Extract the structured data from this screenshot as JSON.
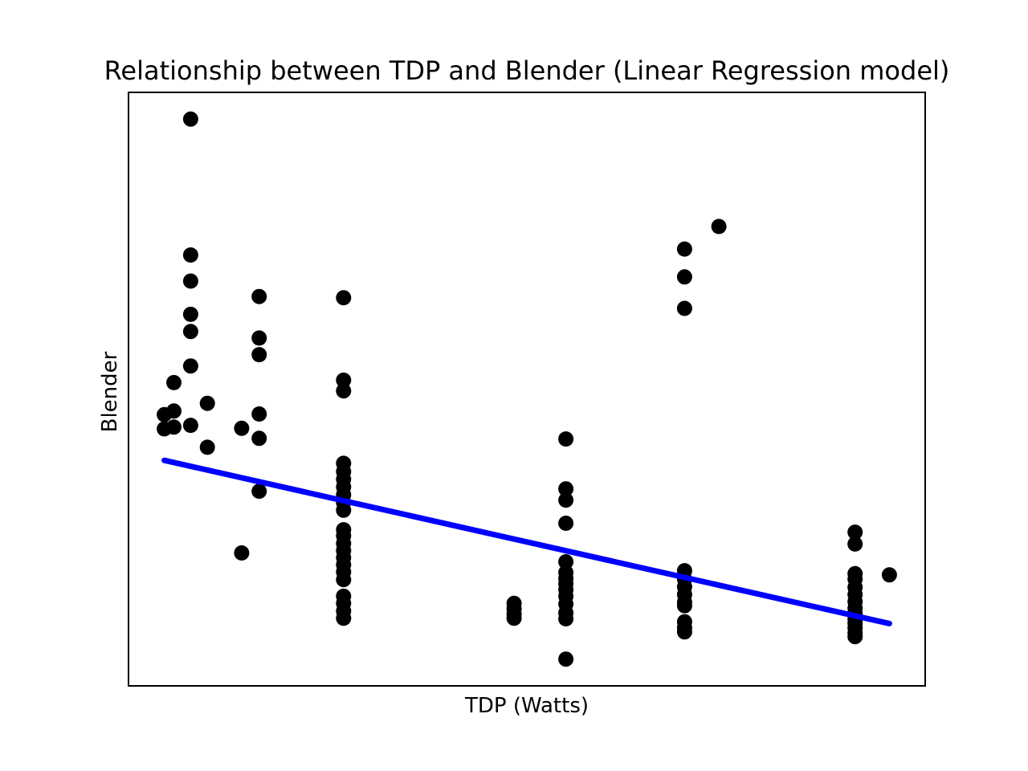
{
  "chart_data": {
    "type": "scatter",
    "title": "Relationship between TDP and Blender (Linear Regression model)",
    "xlabel": "TDP (Watts)",
    "ylabel": "Blender",
    "xlim": [
      0,
      100
    ],
    "ylim": [
      0,
      100
    ],
    "x_ticks_shown": false,
    "y_ticks_shown": false,
    "grid": false,
    "colors": {
      "points": "#000000",
      "regression_line": "#0000ff",
      "frame": "#000000",
      "background": "#ffffff"
    },
    "points": [
      {
        "x": 4.5,
        "y": 45.7
      },
      {
        "x": 4.5,
        "y": 43.3
      },
      {
        "x": 5.7,
        "y": 51.1
      },
      {
        "x": 5.7,
        "y": 46.3
      },
      {
        "x": 5.7,
        "y": 43.6
      },
      {
        "x": 7.8,
        "y": 95.5
      },
      {
        "x": 7.8,
        "y": 72.6
      },
      {
        "x": 7.8,
        "y": 68.2
      },
      {
        "x": 7.8,
        "y": 62.6
      },
      {
        "x": 7.8,
        "y": 59.7
      },
      {
        "x": 7.8,
        "y": 53.9
      },
      {
        "x": 7.8,
        "y": 43.9
      },
      {
        "x": 9.9,
        "y": 47.6
      },
      {
        "x": 9.9,
        "y": 40.2
      },
      {
        "x": 14.2,
        "y": 43.4
      },
      {
        "x": 14.2,
        "y": 22.4
      },
      {
        "x": 16.4,
        "y": 65.6
      },
      {
        "x": 16.4,
        "y": 58.6
      },
      {
        "x": 16.4,
        "y": 55.8
      },
      {
        "x": 16.4,
        "y": 45.8
      },
      {
        "x": 16.4,
        "y": 41.7
      },
      {
        "x": 16.4,
        "y": 32.8
      },
      {
        "x": 27.0,
        "y": 65.4
      },
      {
        "x": 27.0,
        "y": 51.5
      },
      {
        "x": 27.0,
        "y": 49.7
      },
      {
        "x": 27.0,
        "y": 37.5
      },
      {
        "x": 27.0,
        "y": 36.1
      },
      {
        "x": 27.0,
        "y": 34.8
      },
      {
        "x": 27.0,
        "y": 33.5
      },
      {
        "x": 27.0,
        "y": 32.2
      },
      {
        "x": 27.0,
        "y": 30.9
      },
      {
        "x": 27.0,
        "y": 29.6
      },
      {
        "x": 27.0,
        "y": 26.3
      },
      {
        "x": 27.0,
        "y": 25.3
      },
      {
        "x": 27.0,
        "y": 24.0
      },
      {
        "x": 27.0,
        "y": 22.8
      },
      {
        "x": 27.0,
        "y": 21.6
      },
      {
        "x": 27.0,
        "y": 20.4
      },
      {
        "x": 27.0,
        "y": 19.2
      },
      {
        "x": 27.0,
        "y": 17.9
      },
      {
        "x": 27.0,
        "y": 15.1
      },
      {
        "x": 27.0,
        "y": 13.9
      },
      {
        "x": 27.0,
        "y": 12.6
      },
      {
        "x": 27.0,
        "y": 11.4
      },
      {
        "x": 48.4,
        "y": 13.9
      },
      {
        "x": 48.4,
        "y": 13.0
      },
      {
        "x": 48.4,
        "y": 12.1
      },
      {
        "x": 48.4,
        "y": 11.4
      },
      {
        "x": 54.9,
        "y": 41.6
      },
      {
        "x": 54.9,
        "y": 33.2
      },
      {
        "x": 54.9,
        "y": 31.3
      },
      {
        "x": 54.9,
        "y": 27.4
      },
      {
        "x": 54.9,
        "y": 20.9
      },
      {
        "x": 54.9,
        "y": 19.1
      },
      {
        "x": 54.9,
        "y": 18.1
      },
      {
        "x": 54.9,
        "y": 17.2
      },
      {
        "x": 54.9,
        "y": 16.2
      },
      {
        "x": 54.9,
        "y": 15.1
      },
      {
        "x": 54.9,
        "y": 13.8
      },
      {
        "x": 54.9,
        "y": 12.3
      },
      {
        "x": 54.9,
        "y": 11.3
      },
      {
        "x": 54.9,
        "y": 4.5
      },
      {
        "x": 69.8,
        "y": 73.6
      },
      {
        "x": 69.8,
        "y": 68.9
      },
      {
        "x": 69.8,
        "y": 63.6
      },
      {
        "x": 69.8,
        "y": 19.4
      },
      {
        "x": 69.8,
        "y": 18.0
      },
      {
        "x": 69.8,
        "y": 16.7
      },
      {
        "x": 69.8,
        "y": 15.4
      },
      {
        "x": 69.8,
        "y": 14.1
      },
      {
        "x": 69.8,
        "y": 13.5
      },
      {
        "x": 69.8,
        "y": 10.8
      },
      {
        "x": 69.8,
        "y": 9.8
      },
      {
        "x": 69.8,
        "y": 9.1
      },
      {
        "x": 74.1,
        "y": 77.4
      },
      {
        "x": 91.2,
        "y": 25.9
      },
      {
        "x": 91.2,
        "y": 23.9
      },
      {
        "x": 91.2,
        "y": 18.9
      },
      {
        "x": 91.2,
        "y": 18.0
      },
      {
        "x": 91.2,
        "y": 16.6
      },
      {
        "x": 91.2,
        "y": 15.4
      },
      {
        "x": 91.2,
        "y": 14.2
      },
      {
        "x": 91.2,
        "y": 13.1
      },
      {
        "x": 91.2,
        "y": 12.2
      },
      {
        "x": 91.2,
        "y": 11.3
      },
      {
        "x": 91.2,
        "y": 10.6
      },
      {
        "x": 91.2,
        "y": 9.8
      },
      {
        "x": 91.2,
        "y": 8.9
      },
      {
        "x": 91.2,
        "y": 8.3
      },
      {
        "x": 95.5,
        "y": 18.7
      }
    ],
    "regression_line": {
      "x": [
        4.5,
        95.5
      ],
      "y": [
        38.0,
        10.5
      ]
    }
  }
}
